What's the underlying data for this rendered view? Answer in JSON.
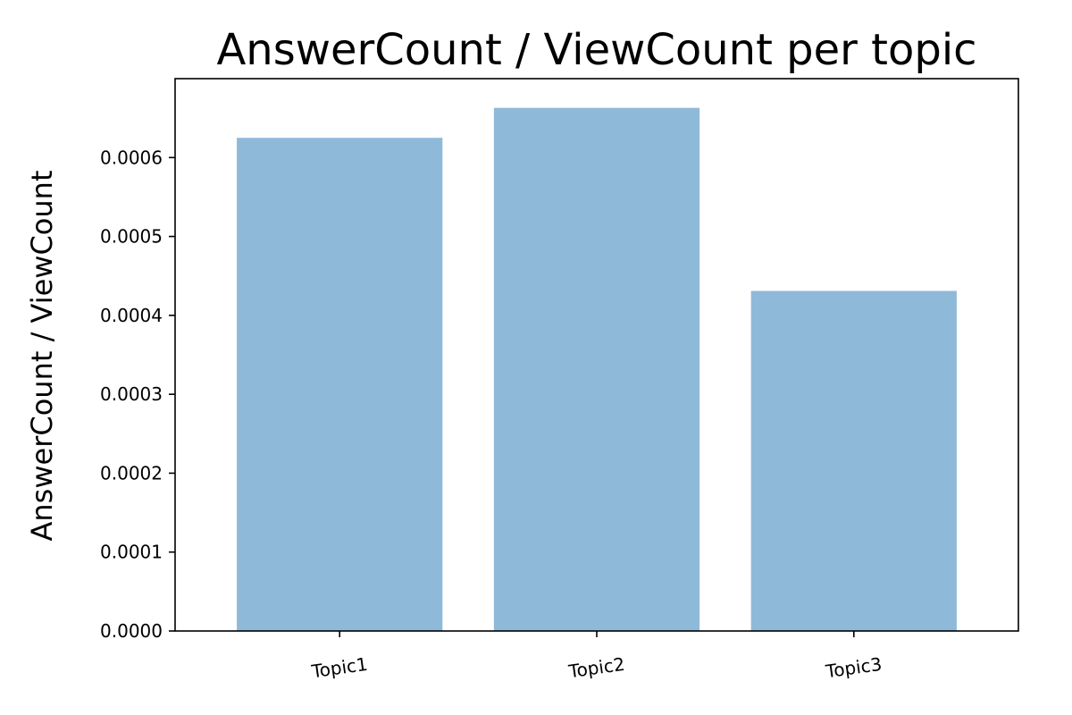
{
  "chart_data": {
    "type": "bar",
    "title": "AnswerCount / ViewCount per topic",
    "xlabel": "",
    "ylabel": "AnswerCount / ViewCount",
    "categories": [
      "Topic1",
      "Topic2",
      "Topic3"
    ],
    "values": [
      0.000625,
      0.000663,
      0.000431
    ],
    "ylim": [
      0,
      0.0007
    ],
    "yticks": [
      0.0,
      0.0001,
      0.0002,
      0.0003,
      0.0004,
      0.0005,
      0.0006
    ],
    "ytick_labels": [
      "0.0000",
      "0.0001",
      "0.0002",
      "0.0003",
      "0.0004",
      "0.0005",
      "0.0006"
    ],
    "x_tick_rotation": "slight",
    "grid": false,
    "legend": false,
    "bar_color": "#8fb9d9"
  }
}
